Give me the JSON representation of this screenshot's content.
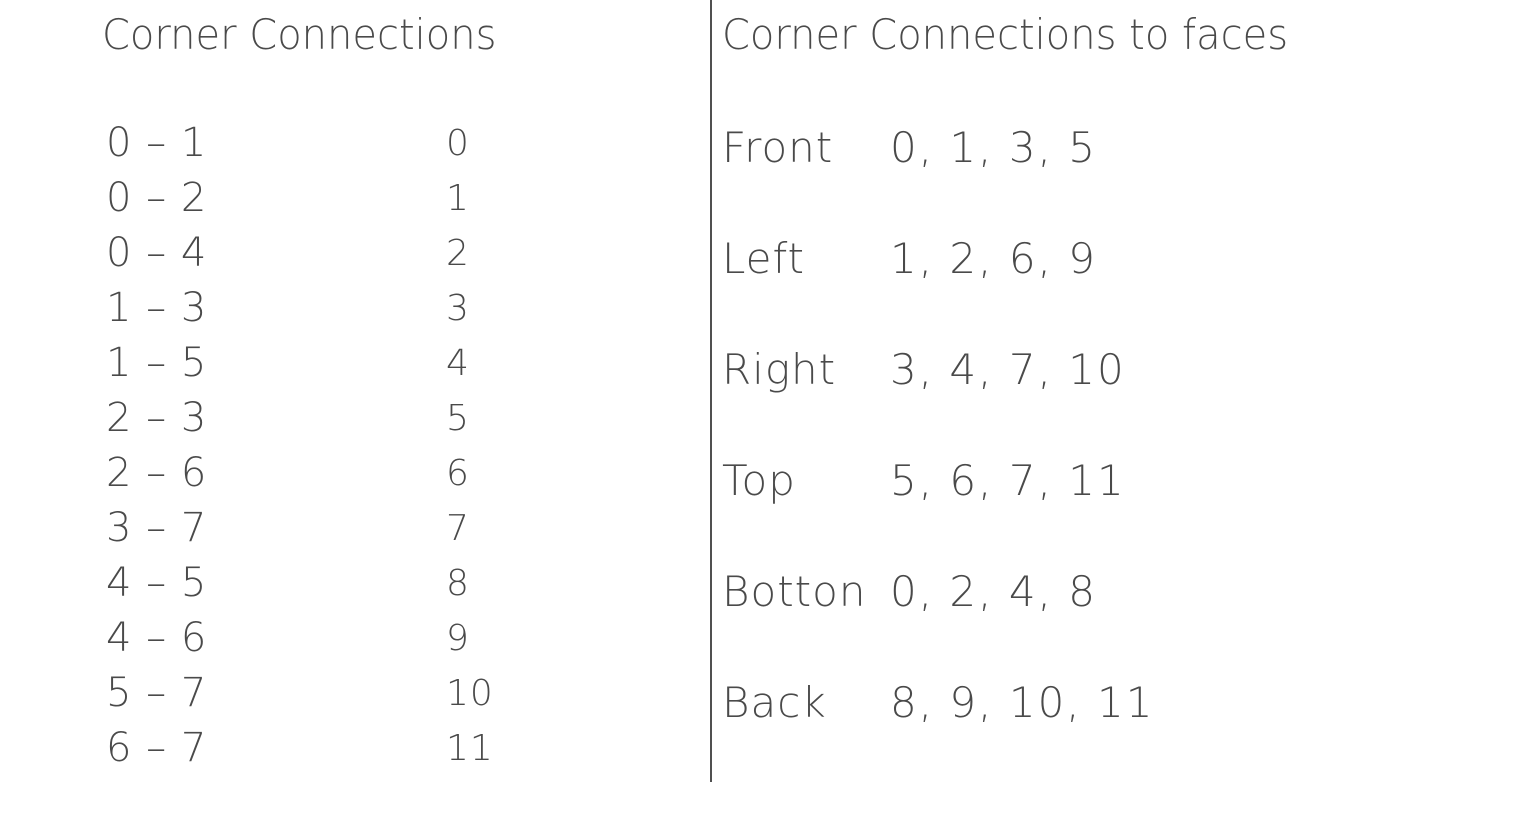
{
  "left_section": {
    "title": "Corner Connections",
    "connections": [
      {
        "pair": "0 – 1",
        "index": "0"
      },
      {
        "pair": "0 – 2",
        "index": "1"
      },
      {
        "pair": "0 – 4",
        "index": "2"
      },
      {
        "pair": "1 – 3",
        "index": "3"
      },
      {
        "pair": "1 – 5",
        "index": "4"
      },
      {
        "pair": "2 – 3",
        "index": "5"
      },
      {
        "pair": "2 – 6",
        "index": "6"
      },
      {
        "pair": "3 – 7",
        "index": "7"
      },
      {
        "pair": "4 – 5",
        "index": "8"
      },
      {
        "pair": "4 – 6",
        "index": "9"
      },
      {
        "pair": "5 – 7",
        "index": "10"
      },
      {
        "pair": "6 – 7",
        "index": "11"
      }
    ]
  },
  "right_section": {
    "title": "Corner Connections to faces",
    "faces": [
      {
        "name": "Front",
        "edges": "0, 1, 3, 5"
      },
      {
        "name": "Left",
        "edges": "1, 2, 6, 9"
      },
      {
        "name": "Right",
        "edges": "3, 4, 7, 10"
      },
      {
        "name": "Top",
        "edges": "5, 6, 7, 11"
      },
      {
        "name": "Botton",
        "edges": "0, 2, 4, 8"
      },
      {
        "name": "Back",
        "edges": "8, 9, 10, 11"
      }
    ]
  }
}
